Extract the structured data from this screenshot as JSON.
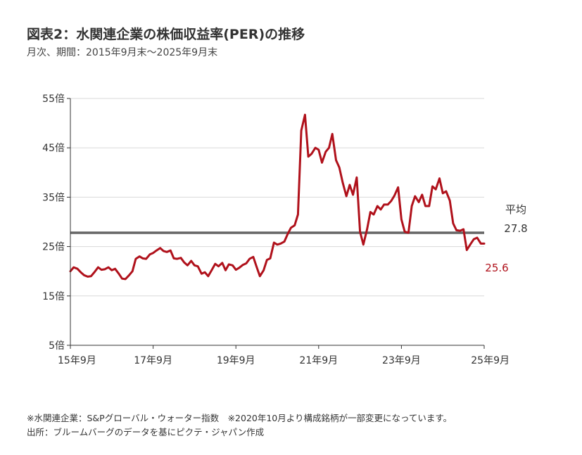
{
  "header": {
    "title": "図表2：水関連企業の株価収益率(PER)の推移",
    "subtitle": "月次、期間：2015年9月末～2025年9月末"
  },
  "chart_data": {
    "type": "line",
    "title": "図表2：水関連企業の株価収益率(PER)の推移",
    "ylim": [
      5,
      55
    ],
    "xlim": [
      2015.75,
      2025.75
    ],
    "y_ticks": [
      5,
      15,
      25,
      35,
      45,
      55
    ],
    "y_tick_labels": [
      "5倍",
      "15倍",
      "25倍",
      "35倍",
      "45倍",
      "55倍"
    ],
    "x_ticks": [
      2015.75,
      2017.75,
      2019.75,
      2021.75,
      2023.75,
      2025.75
    ],
    "x_tick_labels": [
      "15年9月",
      "17年9月",
      "19年9月",
      "21年9月",
      "23年9月",
      "25年9月"
    ],
    "grid": true,
    "series": [
      {
        "name": "",
        "color": "#b0111b",
        "points": [
          [
            2015.75,
            20.0
          ],
          [
            2015.83,
            20.8
          ],
          [
            2015.92,
            20.5
          ],
          [
            2016.0,
            19.8
          ],
          [
            2016.08,
            19.2
          ],
          [
            2016.17,
            18.9
          ],
          [
            2016.25,
            19.0
          ],
          [
            2016.33,
            19.8
          ],
          [
            2016.42,
            20.8
          ],
          [
            2016.5,
            20.3
          ],
          [
            2016.58,
            20.4
          ],
          [
            2016.67,
            20.8
          ],
          [
            2016.75,
            20.2
          ],
          [
            2016.83,
            20.5
          ],
          [
            2016.92,
            19.5
          ],
          [
            2017.0,
            18.5
          ],
          [
            2017.08,
            18.4
          ],
          [
            2017.17,
            19.2
          ],
          [
            2017.25,
            20.0
          ],
          [
            2017.33,
            22.5
          ],
          [
            2017.42,
            23.0
          ],
          [
            2017.5,
            22.6
          ],
          [
            2017.58,
            22.5
          ],
          [
            2017.67,
            23.4
          ],
          [
            2017.75,
            23.7
          ],
          [
            2017.83,
            24.2
          ],
          [
            2017.92,
            24.7
          ],
          [
            2018.0,
            24.1
          ],
          [
            2018.08,
            23.9
          ],
          [
            2018.17,
            24.2
          ],
          [
            2018.25,
            22.6
          ],
          [
            2018.33,
            22.5
          ],
          [
            2018.42,
            22.7
          ],
          [
            2018.5,
            21.8
          ],
          [
            2018.58,
            21.2
          ],
          [
            2018.67,
            22.1
          ],
          [
            2018.75,
            21.2
          ],
          [
            2018.83,
            21.0
          ],
          [
            2018.92,
            19.5
          ],
          [
            2019.0,
            19.8
          ],
          [
            2019.08,
            19.0
          ],
          [
            2019.17,
            20.3
          ],
          [
            2019.25,
            21.5
          ],
          [
            2019.33,
            21.0
          ],
          [
            2019.42,
            21.7
          ],
          [
            2019.5,
            20.2
          ],
          [
            2019.58,
            21.4
          ],
          [
            2019.67,
            21.2
          ],
          [
            2019.75,
            20.3
          ],
          [
            2019.83,
            20.7
          ],
          [
            2019.92,
            21.3
          ],
          [
            2020.0,
            21.6
          ],
          [
            2020.08,
            22.5
          ],
          [
            2020.17,
            22.9
          ],
          [
            2020.25,
            20.9
          ],
          [
            2020.33,
            19.0
          ],
          [
            2020.42,
            20.2
          ],
          [
            2020.5,
            22.3
          ],
          [
            2020.58,
            22.6
          ],
          [
            2020.67,
            25.8
          ],
          [
            2020.75,
            25.4
          ],
          [
            2020.83,
            25.6
          ],
          [
            2020.92,
            26.0
          ],
          [
            2021.0,
            27.5
          ],
          [
            2021.08,
            28.8
          ],
          [
            2021.17,
            29.3
          ],
          [
            2021.25,
            31.5
          ],
          [
            2021.33,
            48.5
          ],
          [
            2021.42,
            51.7
          ],
          [
            2021.5,
            43.2
          ],
          [
            2021.58,
            43.8
          ],
          [
            2021.67,
            45.0
          ],
          [
            2021.75,
            44.6
          ],
          [
            2021.83,
            42.0
          ],
          [
            2021.92,
            44.2
          ],
          [
            2022.0,
            45.0
          ],
          [
            2022.08,
            47.8
          ],
          [
            2022.17,
            42.5
          ],
          [
            2022.25,
            41.0
          ],
          [
            2022.33,
            38.0
          ],
          [
            2022.42,
            35.2
          ],
          [
            2022.5,
            37.5
          ],
          [
            2022.58,
            35.5
          ],
          [
            2022.67,
            39.0
          ],
          [
            2022.75,
            28.0
          ],
          [
            2022.83,
            25.4
          ],
          [
            2022.92,
            28.5
          ],
          [
            2023.0,
            32.0
          ],
          [
            2023.08,
            31.5
          ],
          [
            2023.17,
            33.2
          ],
          [
            2023.25,
            32.5
          ],
          [
            2023.33,
            33.5
          ],
          [
            2023.42,
            33.5
          ],
          [
            2023.5,
            34.2
          ],
          [
            2023.58,
            35.3
          ],
          [
            2023.67,
            37.0
          ],
          [
            2023.75,
            30.5
          ],
          [
            2023.83,
            28.0
          ],
          [
            2023.92,
            27.8
          ],
          [
            2024.0,
            33.2
          ],
          [
            2024.08,
            35.2
          ],
          [
            2024.17,
            34.0
          ],
          [
            2024.25,
            35.5
          ],
          [
            2024.33,
            33.2
          ],
          [
            2024.42,
            33.2
          ],
          [
            2024.5,
            37.2
          ],
          [
            2024.58,
            36.6
          ],
          [
            2024.67,
            38.8
          ],
          [
            2024.75,
            35.8
          ],
          [
            2024.83,
            36.2
          ],
          [
            2024.92,
            34.3
          ],
          [
            2025.0,
            29.7
          ],
          [
            2025.08,
            28.3
          ],
          [
            2025.17,
            28.2
          ],
          [
            2025.25,
            28.5
          ],
          [
            2025.33,
            24.3
          ],
          [
            2025.42,
            25.5
          ],
          [
            2025.5,
            26.5
          ],
          [
            2025.58,
            26.8
          ],
          [
            2025.67,
            25.6
          ],
          [
            2025.75,
            25.6
          ]
        ]
      },
      {
        "name": "平均",
        "color": "#666666",
        "points": [
          [
            2015.75,
            27.8
          ],
          [
            2025.75,
            27.8
          ]
        ]
      }
    ],
    "annotations": {
      "average_label": "平均",
      "average_value": "27.8",
      "latest_value": "25.6"
    }
  },
  "footer": {
    "note1": "※水関連企業：S&Pグローバル・ウォーター指数　※2020年10月より構成銘柄が一部変更になっています。",
    "note2": "出所：ブルームバーグのデータを基にピクテ・ジャパン作成"
  }
}
